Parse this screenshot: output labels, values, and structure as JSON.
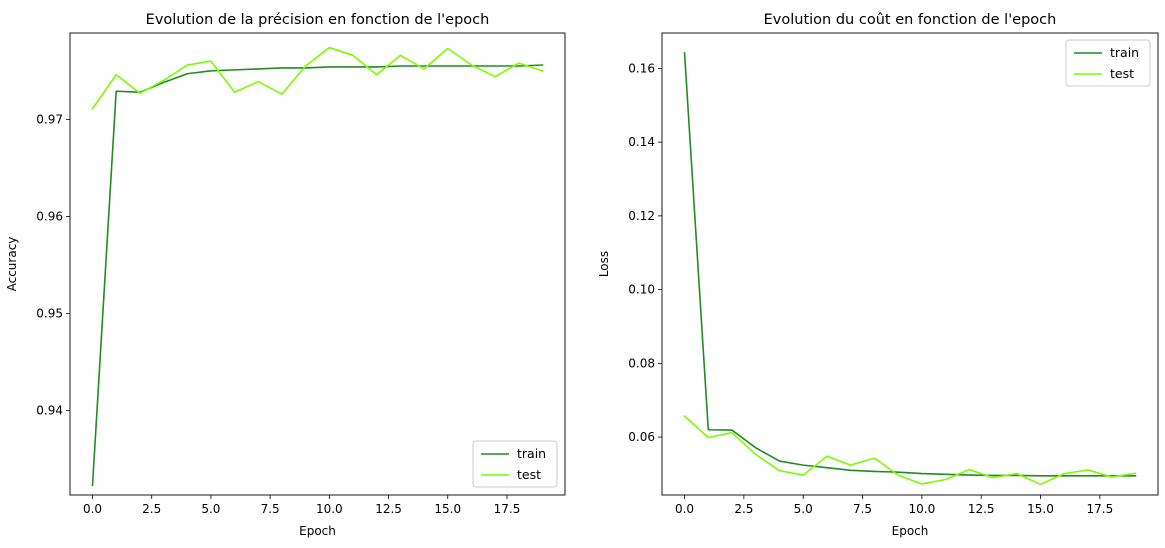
{
  "chart_data": [
    {
      "type": "line",
      "title": "Evolution de la précision en fonction de l'epoch",
      "xlabel": "Epoch",
      "ylabel": "Accuracy",
      "xlim": [
        -0.95,
        19.95
      ],
      "ylim": [
        0.9313,
        0.9789
      ],
      "xticks": [
        0.0,
        2.5,
        5.0,
        7.5,
        10.0,
        12.5,
        15.0,
        17.5
      ],
      "xtick_labels": [
        "0.0",
        "2.5",
        "5.0",
        "7.5",
        "10.0",
        "12.5",
        "15.0",
        "17.5"
      ],
      "yticks": [
        0.94,
        0.95,
        0.96,
        0.97
      ],
      "ytick_labels": [
        "0.94",
        "0.95",
        "0.96",
        "0.97"
      ],
      "grid": false,
      "legend_position": "lower-right",
      "x": [
        0,
        1,
        2,
        3,
        4,
        5,
        6,
        7,
        8,
        9,
        10,
        11,
        12,
        13,
        14,
        15,
        16,
        17,
        18,
        19
      ],
      "series": [
        {
          "name": "train",
          "color": "#228b22",
          "values": [
            0.9323,
            0.9729,
            0.9728,
            0.9738,
            0.9747,
            0.975,
            0.9751,
            0.9752,
            0.9753,
            0.9753,
            0.9754,
            0.9754,
            0.9754,
            0.9755,
            0.9755,
            0.9755,
            0.9755,
            0.9755,
            0.9755,
            0.9756
          ]
        },
        {
          "name": "test",
          "color": "#7cfc00",
          "values": [
            0.9711,
            0.9746,
            0.9727,
            0.974,
            0.9756,
            0.976,
            0.9728,
            0.9739,
            0.9726,
            0.9755,
            0.9774,
            0.9766,
            0.9746,
            0.9766,
            0.9752,
            0.9773,
            0.9756,
            0.9744,
            0.9758,
            0.975
          ]
        }
      ]
    },
    {
      "type": "line",
      "title": "Evolution du coût en fonction de l'epoch",
      "xlabel": "Epoch",
      "ylabel": "Loss",
      "xlim": [
        -0.95,
        19.95
      ],
      "ylim": [
        0.0443,
        0.1696
      ],
      "xticks": [
        0.0,
        2.5,
        5.0,
        7.5,
        10.0,
        12.5,
        15.0,
        17.5
      ],
      "xtick_labels": [
        "0.0",
        "2.5",
        "5.0",
        "7.5",
        "10.0",
        "12.5",
        "15.0",
        "17.5"
      ],
      "yticks": [
        0.06,
        0.08,
        0.1,
        0.12,
        0.14,
        0.16
      ],
      "ytick_labels": [
        "0.06",
        "0.08",
        "0.10",
        "0.12",
        "0.14",
        "0.16"
      ],
      "grid": false,
      "legend_position": "upper-right",
      "x": [
        0,
        1,
        2,
        3,
        4,
        5,
        6,
        7,
        8,
        9,
        10,
        11,
        12,
        13,
        14,
        15,
        16,
        17,
        18,
        19
      ],
      "series": [
        {
          "name": "train",
          "color": "#228b22",
          "values": [
            0.1642,
            0.062,
            0.0619,
            0.0571,
            0.0535,
            0.0524,
            0.0517,
            0.051,
            0.0507,
            0.0505,
            0.0501,
            0.0499,
            0.0497,
            0.0496,
            0.0496,
            0.0495,
            0.0495,
            0.0495,
            0.0495,
            0.0495
          ]
        },
        {
          "name": "test",
          "color": "#7cfc00",
          "values": [
            0.0657,
            0.0599,
            0.0612,
            0.0553,
            0.0509,
            0.0497,
            0.0548,
            0.0524,
            0.0543,
            0.0497,
            0.0473,
            0.0485,
            0.0512,
            0.049,
            0.0501,
            0.0472,
            0.0501,
            0.0511,
            0.0492,
            0.0502
          ]
        }
      ]
    }
  ]
}
